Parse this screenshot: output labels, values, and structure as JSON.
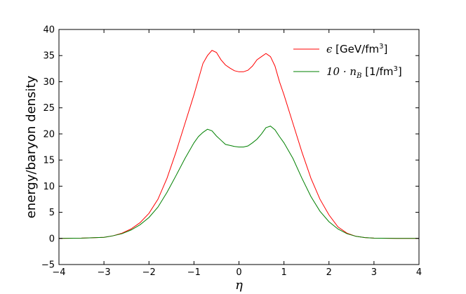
{
  "chart_data": {
    "type": "line",
    "xlabel": "η",
    "ylabel": "energy/baryon density",
    "xlim": [
      -4,
      4
    ],
    "ylim": [
      -5,
      40
    ],
    "xticks": [
      -4,
      -3,
      -2,
      -1,
      0,
      1,
      2,
      3,
      4
    ],
    "xtick_labels": [
      "−4",
      "−3",
      "−2",
      "−1",
      "0",
      "1",
      "2",
      "3",
      "4"
    ],
    "yticks": [
      -5,
      0,
      5,
      10,
      15,
      20,
      25,
      30,
      35,
      40
    ],
    "ytick_labels": [
      "−5",
      "0",
      "5",
      "10",
      "15",
      "20",
      "25",
      "30",
      "35",
      "40"
    ],
    "grid": false,
    "legend_position": "top-right",
    "series": [
      {
        "name": "ϵ [GeV/fm³]",
        "legend": {
          "math": "ϵ",
          "text": " [GeV/fm",
          "sup": "3",
          "end": "]"
        },
        "color": "#ff0000",
        "x": [
          -4.0,
          -3.5,
          -3.0,
          -2.8,
          -2.6,
          -2.4,
          -2.2,
          -2.0,
          -1.8,
          -1.6,
          -1.4,
          -1.2,
          -1.0,
          -0.9,
          -0.8,
          -0.7,
          -0.6,
          -0.5,
          -0.4,
          -0.3,
          -0.2,
          -0.1,
          0.0,
          0.1,
          0.2,
          0.3,
          0.4,
          0.5,
          0.6,
          0.7,
          0.8,
          0.9,
          1.0,
          1.2,
          1.4,
          1.6,
          1.8,
          2.0,
          2.2,
          2.4,
          2.6,
          2.8,
          3.0,
          3.5,
          4.0
        ],
        "y": [
          0.0,
          0.05,
          0.2,
          0.5,
          1.0,
          1.8,
          3.0,
          4.8,
          7.5,
          11.5,
          16.5,
          22.0,
          27.5,
          30.5,
          33.5,
          35.0,
          36.0,
          35.6,
          34.2,
          33.2,
          32.6,
          32.1,
          31.9,
          31.9,
          32.2,
          33.0,
          34.2,
          34.8,
          35.4,
          34.8,
          33.0,
          30.0,
          27.5,
          22.0,
          16.5,
          11.5,
          7.5,
          4.5,
          2.2,
          1.0,
          0.4,
          0.15,
          0.05,
          0.0,
          0.0
        ]
      },
      {
        "name": "10·n_B [1/fm³]",
        "legend": {
          "math": "10 · n",
          "sub": "B",
          "text": " [1/fm",
          "sup": "3",
          "end": "]"
        },
        "color": "#008000",
        "x": [
          -4.0,
          -3.5,
          -3.0,
          -2.8,
          -2.6,
          -2.4,
          -2.2,
          -2.0,
          -1.8,
          -1.6,
          -1.4,
          -1.2,
          -1.0,
          -0.9,
          -0.8,
          -0.7,
          -0.6,
          -0.5,
          -0.4,
          -0.3,
          -0.2,
          -0.1,
          0.0,
          0.1,
          0.2,
          0.3,
          0.4,
          0.5,
          0.6,
          0.7,
          0.8,
          0.9,
          1.0,
          1.2,
          1.4,
          1.6,
          1.8,
          2.0,
          2.2,
          2.4,
          2.6,
          2.8,
          3.0,
          3.5,
          4.0
        ],
        "y": [
          0.0,
          0.05,
          0.2,
          0.5,
          0.9,
          1.6,
          2.6,
          4.0,
          6.0,
          8.8,
          12.0,
          15.3,
          18.3,
          19.5,
          20.3,
          20.9,
          20.6,
          19.6,
          18.8,
          18.0,
          17.8,
          17.6,
          17.5,
          17.5,
          17.7,
          18.3,
          19.0,
          20.0,
          21.2,
          21.5,
          20.8,
          19.5,
          18.3,
          15.3,
          11.5,
          8.0,
          5.2,
          3.2,
          1.8,
          0.9,
          0.4,
          0.15,
          0.05,
          0.0,
          0.0
        ]
      }
    ]
  }
}
